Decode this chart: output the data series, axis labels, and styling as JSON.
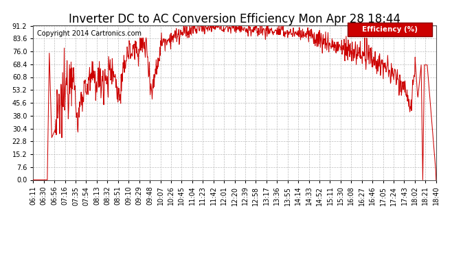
{
  "title": "Inverter DC to AC Conversion Efficiency Mon Apr 28 18:44",
  "copyright": "Copyright 2014 Cartronics.com",
  "legend_label": "Efficiency (%)",
  "legend_bg": "#cc0000",
  "legend_text_color": "#ffffff",
  "line_color": "#cc0000",
  "bg_color": "#ffffff",
  "plot_bg_color": "#ffffff",
  "grid_color": "#bbbbbb",
  "ylabel_values": [
    0.0,
    7.6,
    15.2,
    22.8,
    30.4,
    38.0,
    45.6,
    53.2,
    60.8,
    68.4,
    76.0,
    83.6,
    91.2
  ],
  "xtick_labels": [
    "06:11",
    "06:30",
    "06:56",
    "07:16",
    "07:35",
    "07:54",
    "08:13",
    "08:32",
    "08:51",
    "09:10",
    "09:29",
    "09:48",
    "10:07",
    "10:26",
    "10:45",
    "11:04",
    "11:23",
    "11:42",
    "12:01",
    "12:20",
    "12:39",
    "12:58",
    "13:17",
    "13:36",
    "13:55",
    "14:14",
    "14:33",
    "14:52",
    "15:11",
    "15:30",
    "16:08",
    "16:27",
    "16:46",
    "17:05",
    "17:24",
    "17:43",
    "18:02",
    "18:21",
    "18:40"
  ],
  "ylim": [
    0.0,
    91.2
  ],
  "title_fontsize": 12,
  "copyright_fontsize": 7,
  "tick_fontsize": 7
}
